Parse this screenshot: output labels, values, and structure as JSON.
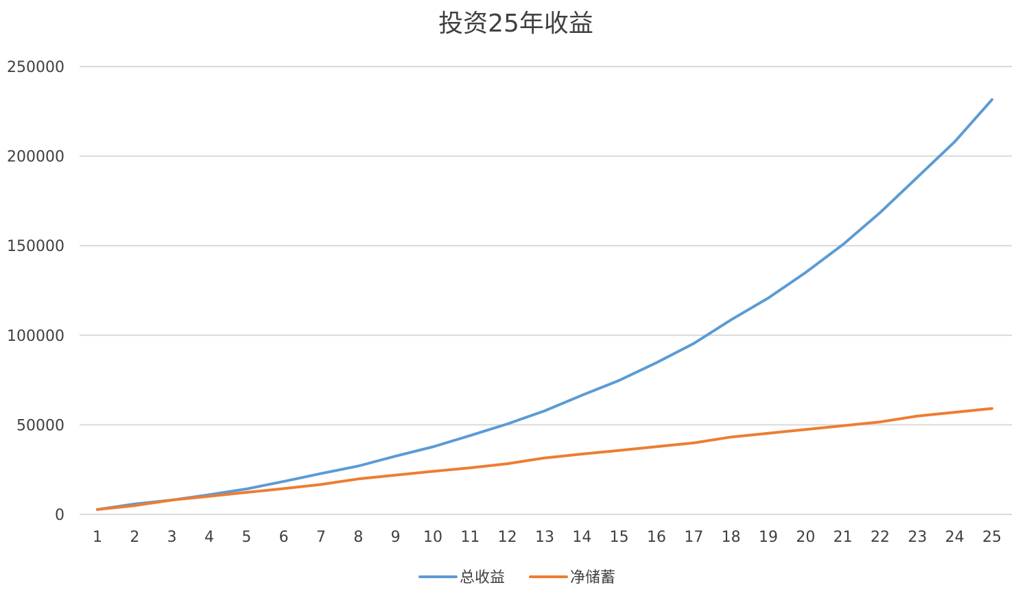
{
  "chart_data": {
    "type": "line",
    "title": "投资25年收益",
    "xlabel": "",
    "ylabel": "",
    "ylim": [
      0,
      250000
    ],
    "yticks": [
      "0",
      "50000",
      "100000",
      "150000",
      "200000",
      "250000"
    ],
    "y_tick_values": [
      0,
      50000,
      100000,
      150000,
      200000,
      250000
    ],
    "grid": true,
    "legend_position": "bottom",
    "categories": [
      "1",
      "2",
      "3",
      "4",
      "5",
      "6",
      "7",
      "8",
      "9",
      "10",
      "11",
      "12",
      "13",
      "14",
      "15",
      "16",
      "17",
      "18",
      "19",
      "20",
      "21",
      "22",
      "23",
      "24",
      "25"
    ],
    "series": [
      {
        "name": "总收益",
        "color": "#5b9bd5",
        "values": [
          2700,
          5800,
          8000,
          11000,
          14200,
          18400,
          22800,
          27000,
          32500,
          37700,
          44000,
          50500,
          57800,
          66500,
          74800,
          84700,
          95400,
          108600,
          120800,
          135000,
          150600,
          168500,
          188200,
          208000,
          231500
        ]
      },
      {
        "name": "净储蓄",
        "color": "#ed7d31",
        "values": [
          2700,
          4900,
          8000,
          10100,
          12300,
          14400,
          16700,
          19800,
          21900,
          24000,
          26000,
          28300,
          31500,
          33700,
          35700,
          37800,
          39900,
          43200,
          45300,
          47400,
          49500,
          51600,
          54900,
          57000,
          59100
        ]
      }
    ]
  }
}
